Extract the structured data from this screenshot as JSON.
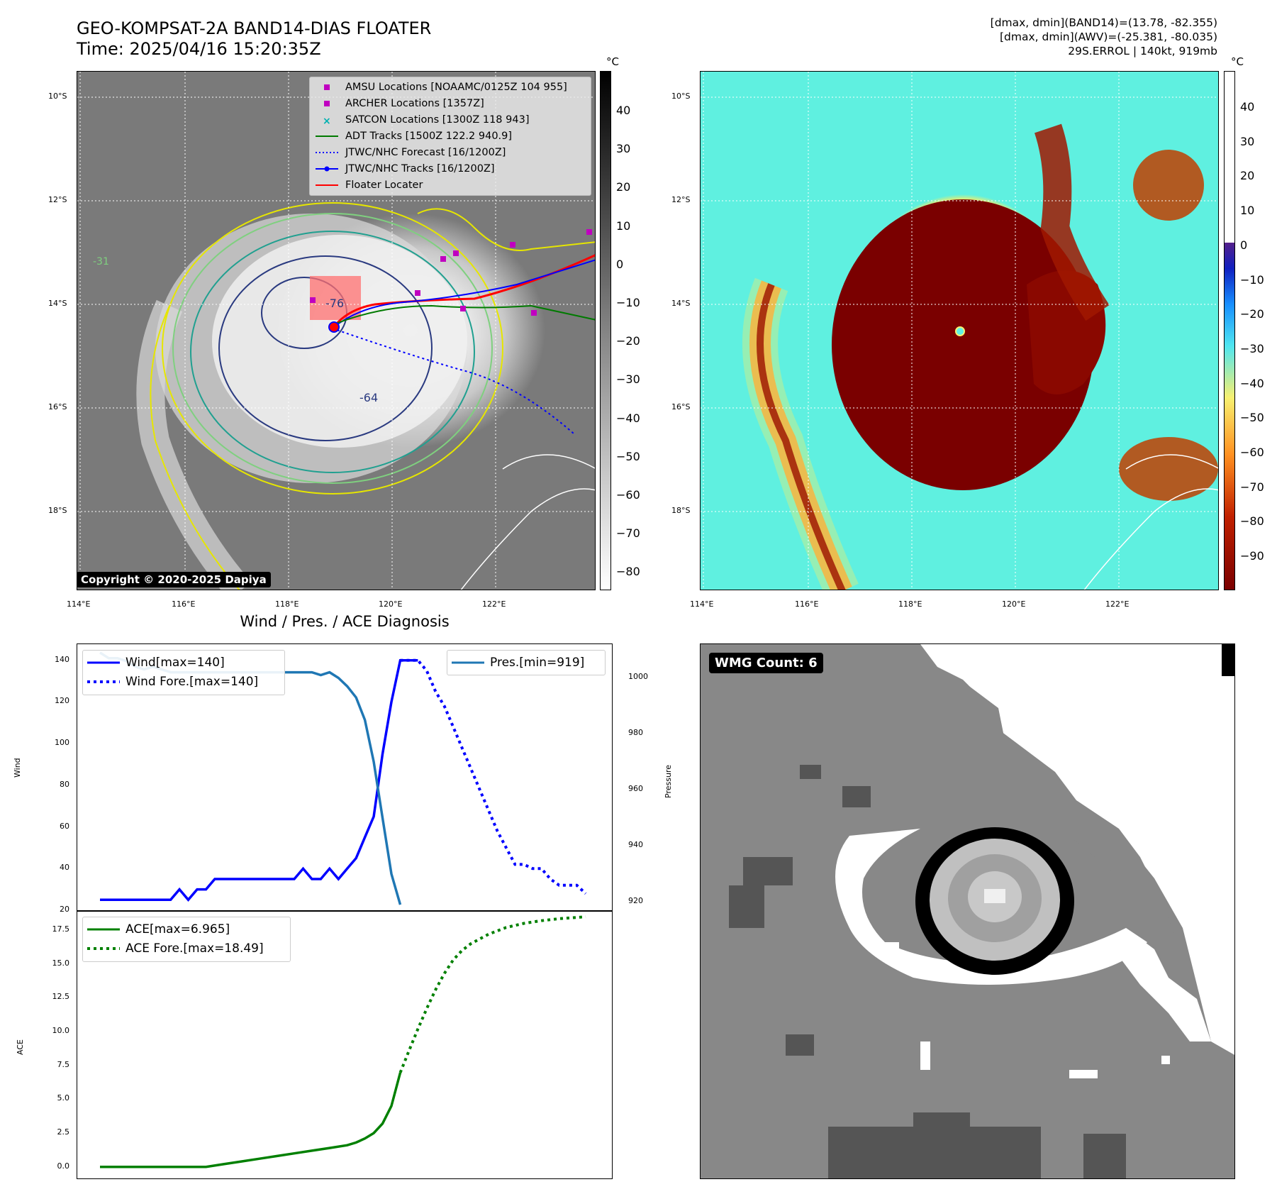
{
  "header": {
    "title_line1": "GEO-KOMPSAT-2A BAND14-DIAS FLOATER",
    "title_line2": "Time: 2025/04/16 15:20:35Z",
    "info_line1": "[dmax, dmin](BAND14)=(13.78, -82.355)",
    "info_line2": "[dmax, dmin](AWV)=(-25.381, -80.035)",
    "info_line3": "29S.ERROL | 140kt, 919mb"
  },
  "maps": {
    "lat_labels": [
      "10°S",
      "12°S",
      "14°S",
      "16°S",
      "18°S"
    ],
    "lon_labels": [
      "114°E",
      "116°E",
      "118°E",
      "120°E",
      "122°E"
    ],
    "contour_labels": [
      "-64",
      "-76",
      "-31"
    ],
    "copyright": "Copyright © 2020-2025 Dapiya",
    "legend": [
      {
        "label": "AMSU Locations [NOAAMC/0125Z 104 955]",
        "color": "#c000c0"
      },
      {
        "label": "ARCHER Locations [1357Z]",
        "color": "#c000c0"
      },
      {
        "label": "SATCON Locations [1300Z 118 943]",
        "color": "#00b0b0"
      },
      {
        "label": "ADT Tracks [1500Z 122.2 940.9]",
        "color": "#007a00"
      },
      {
        "label": "JTWC/NHC Forecast [16/1200Z]",
        "color": "#0000ff"
      },
      {
        "label": "JTWC/NHC Tracks [16/1200Z]",
        "color": "#0000ff"
      },
      {
        "label": "Floater Locater",
        "color": "#ff0000"
      }
    ],
    "ir_colorbar": {
      "unit": "°C",
      "ticks": [
        "40",
        "30",
        "20",
        "10",
        "0",
        "−10",
        "−20",
        "−30",
        "−40",
        "−50",
        "−60",
        "−70",
        "−80"
      ]
    },
    "awv_colorbar": {
      "unit": "°C",
      "ticks": [
        "40",
        "30",
        "20",
        "10",
        "0",
        "−10",
        "−20",
        "−30",
        "−40",
        "−50",
        "−60",
        "−70",
        "−80",
        "−90"
      ]
    },
    "wmg_label": "WMG Count: 6"
  },
  "chart_data": [
    {
      "type": "line",
      "title": "Wind / Pres. / ACE Diagnosis",
      "ylabel": "Wind",
      "y2label": "Pressure",
      "ylim": [
        20,
        145
      ],
      "y2lim": [
        917,
        1010
      ],
      "yticks": [
        "20",
        "40",
        "60",
        "80",
        "100",
        "120",
        "140"
      ],
      "y2ticks": [
        "920",
        "940",
        "960",
        "980",
        "1000"
      ],
      "series": [
        {
          "name": "Wind[max=140]",
          "color": "#0000ff",
          "style": "solid",
          "x": [
            0,
            1,
            2,
            3,
            4,
            5,
            6,
            7,
            8,
            9,
            10,
            11,
            12,
            13,
            14,
            15,
            16,
            17,
            18,
            19,
            20,
            21,
            22,
            23,
            24,
            25,
            26,
            27,
            28,
            29,
            30,
            31,
            32,
            33,
            34,
            35,
            36
          ],
          "values": [
            25,
            25,
            25,
            25,
            25,
            25,
            25,
            25,
            25,
            30,
            25,
            30,
            30,
            35,
            35,
            35,
            35,
            35,
            35,
            35,
            35,
            35,
            35,
            40,
            35,
            35,
            40,
            35,
            40,
            45,
            55,
            65,
            95,
            120,
            140,
            140,
            140
          ]
        },
        {
          "name": "Wind Fore.[max=140]",
          "color": "#0000ff",
          "style": "dotted",
          "x": [
            34,
            35,
            36,
            37,
            38,
            39,
            40,
            41,
            42,
            43,
            44,
            45,
            46,
            47,
            48,
            49,
            50,
            51,
            52,
            53,
            54,
            55
          ],
          "values": [
            140,
            140,
            140,
            135,
            125,
            118,
            108,
            98,
            88,
            78,
            68,
            58,
            50,
            42,
            42,
            40,
            40,
            35,
            32,
            32,
            32,
            28
          ]
        },
        {
          "name": "Pres.[min=919]",
          "color": "#1f77b4",
          "style": "solid",
          "axis": "right",
          "x": [
            0,
            1,
            2,
            3,
            4,
            5,
            6,
            7,
            8,
            9,
            10,
            11,
            12,
            13,
            14,
            15,
            16,
            17,
            18,
            19,
            20,
            21,
            22,
            23,
            24,
            25,
            26,
            27,
            28,
            29,
            30,
            31,
            32,
            33,
            34
          ],
          "values": [
            1009,
            1007,
            1007,
            1006,
            1004,
            1003,
            1004,
            1003,
            1002,
            1002,
            1002,
            1002,
            1002,
            1002,
            1002,
            1002,
            1002,
            1002,
            1002,
            1002,
            1002,
            1002,
            1002,
            1002,
            1002,
            1001,
            1002,
            1000,
            997,
            993,
            985,
            970,
            950,
            930,
            919
          ]
        }
      ]
    },
    {
      "type": "line",
      "ylabel": "ACE",
      "ylim": [
        -0.8,
        18.5
      ],
      "yticks": [
        "0.0",
        "2.5",
        "5.0",
        "7.5",
        "10.0",
        "12.5",
        "15.0",
        "17.5"
      ],
      "series": [
        {
          "name": "ACE[max=6.965]",
          "color": "#008000",
          "style": "solid",
          "x": [
            0,
            2,
            4,
            6,
            8,
            10,
            12,
            14,
            16,
            18,
            20,
            22,
            24,
            26,
            28,
            29,
            30,
            31,
            32,
            33,
            34
          ],
          "values": [
            0,
            0,
            0,
            0,
            0,
            0,
            0,
            0.2,
            0.4,
            0.6,
            0.8,
            1.0,
            1.2,
            1.4,
            1.6,
            1.8,
            2.1,
            2.5,
            3.2,
            4.5,
            6.965
          ]
        },
        {
          "name": "ACE Fore.[max=18.49]",
          "color": "#008000",
          "style": "dotted",
          "x": [
            34,
            35,
            36,
            37,
            38,
            39,
            40,
            41,
            42,
            44,
            46,
            48,
            50,
            52,
            55
          ],
          "values": [
            6.965,
            8.6,
            10.2,
            11.7,
            13.1,
            14.3,
            15.3,
            16.0,
            16.5,
            17.2,
            17.7,
            18.0,
            18.2,
            18.35,
            18.49
          ]
        }
      ]
    }
  ]
}
